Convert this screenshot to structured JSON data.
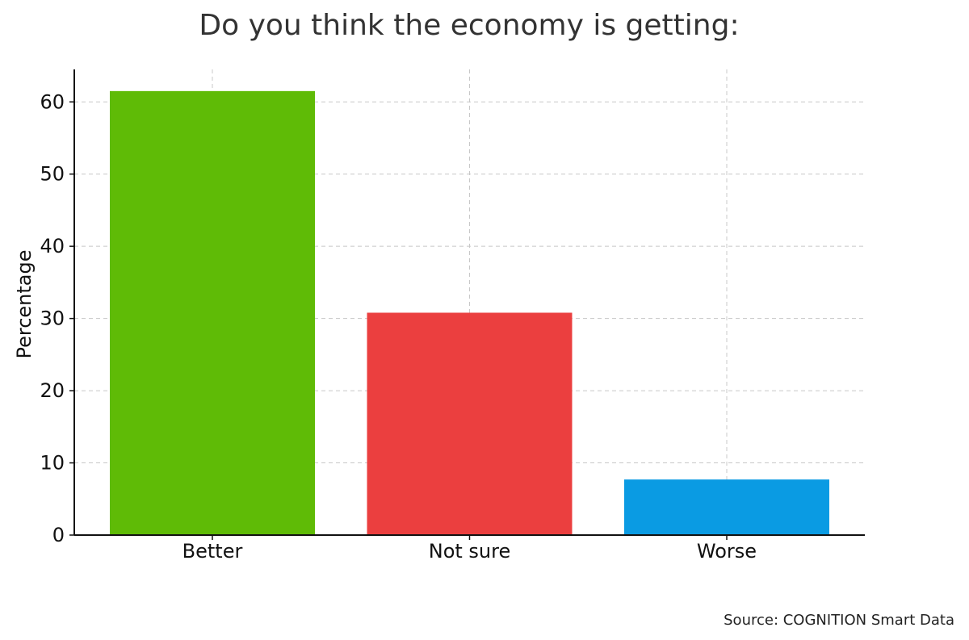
{
  "chart_data": {
    "type": "bar",
    "title": "Do you think the economy is getting:",
    "xlabel": "",
    "ylabel": "Percentage",
    "categories": [
      "Better",
      "Not sure",
      "Worse"
    ],
    "values": [
      61.5,
      30.8,
      7.7
    ],
    "colors": [
      "#5fbb06",
      "#eb3f3f",
      "#0a9be3"
    ],
    "ylim": [
      0,
      64.5
    ],
    "yticks": [
      0,
      10,
      20,
      30,
      40,
      50,
      60
    ],
    "grid": true,
    "legend": "none"
  },
  "source": "Source: COGNITION Smart Data"
}
